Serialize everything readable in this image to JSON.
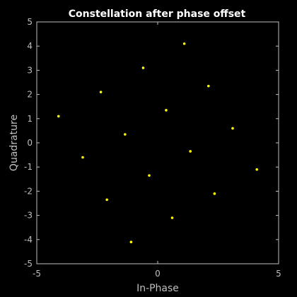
{
  "chart_data": {
    "type": "scatter",
    "title": "Constellation after phase offset",
    "xlabel": "In-Phase",
    "ylabel": "Quadrature",
    "xlim": [
      -5,
      5
    ],
    "ylim": [
      -5,
      5
    ],
    "xticks": [
      -5,
      0,
      5
    ],
    "xtick_labels": [
      "-5",
      "0",
      "5"
    ],
    "yticks": [
      -5,
      -4,
      -3,
      -2,
      -1,
      0,
      1,
      2,
      3,
      4,
      5
    ],
    "ytick_labels": [
      "-5",
      "-4",
      "-3",
      "-2",
      "-1",
      "0",
      "1",
      "2",
      "3",
      "4",
      "5"
    ],
    "grid": false,
    "background_color": "#000000",
    "axis_color": "#bfbfbf",
    "marker_color": "#ffff00",
    "points": [
      {
        "x": 1.1,
        "y": 4.1
      },
      {
        "x": -0.6,
        "y": 3.1
      },
      {
        "x": 2.1,
        "y": 2.35
      },
      {
        "x": -2.35,
        "y": 2.1
      },
      {
        "x": 0.35,
        "y": 1.35
      },
      {
        "x": -4.1,
        "y": 1.1
      },
      {
        "x": 3.1,
        "y": 0.6
      },
      {
        "x": -1.35,
        "y": 0.35
      },
      {
        "x": 1.35,
        "y": -0.35
      },
      {
        "x": -3.1,
        "y": -0.6
      },
      {
        "x": 4.1,
        "y": -1.1
      },
      {
        "x": -0.35,
        "y": -1.35
      },
      {
        "x": 2.35,
        "y": -2.1
      },
      {
        "x": -2.1,
        "y": -2.35
      },
      {
        "x": 0.6,
        "y": -3.1
      },
      {
        "x": -1.1,
        "y": -4.1
      }
    ]
  }
}
